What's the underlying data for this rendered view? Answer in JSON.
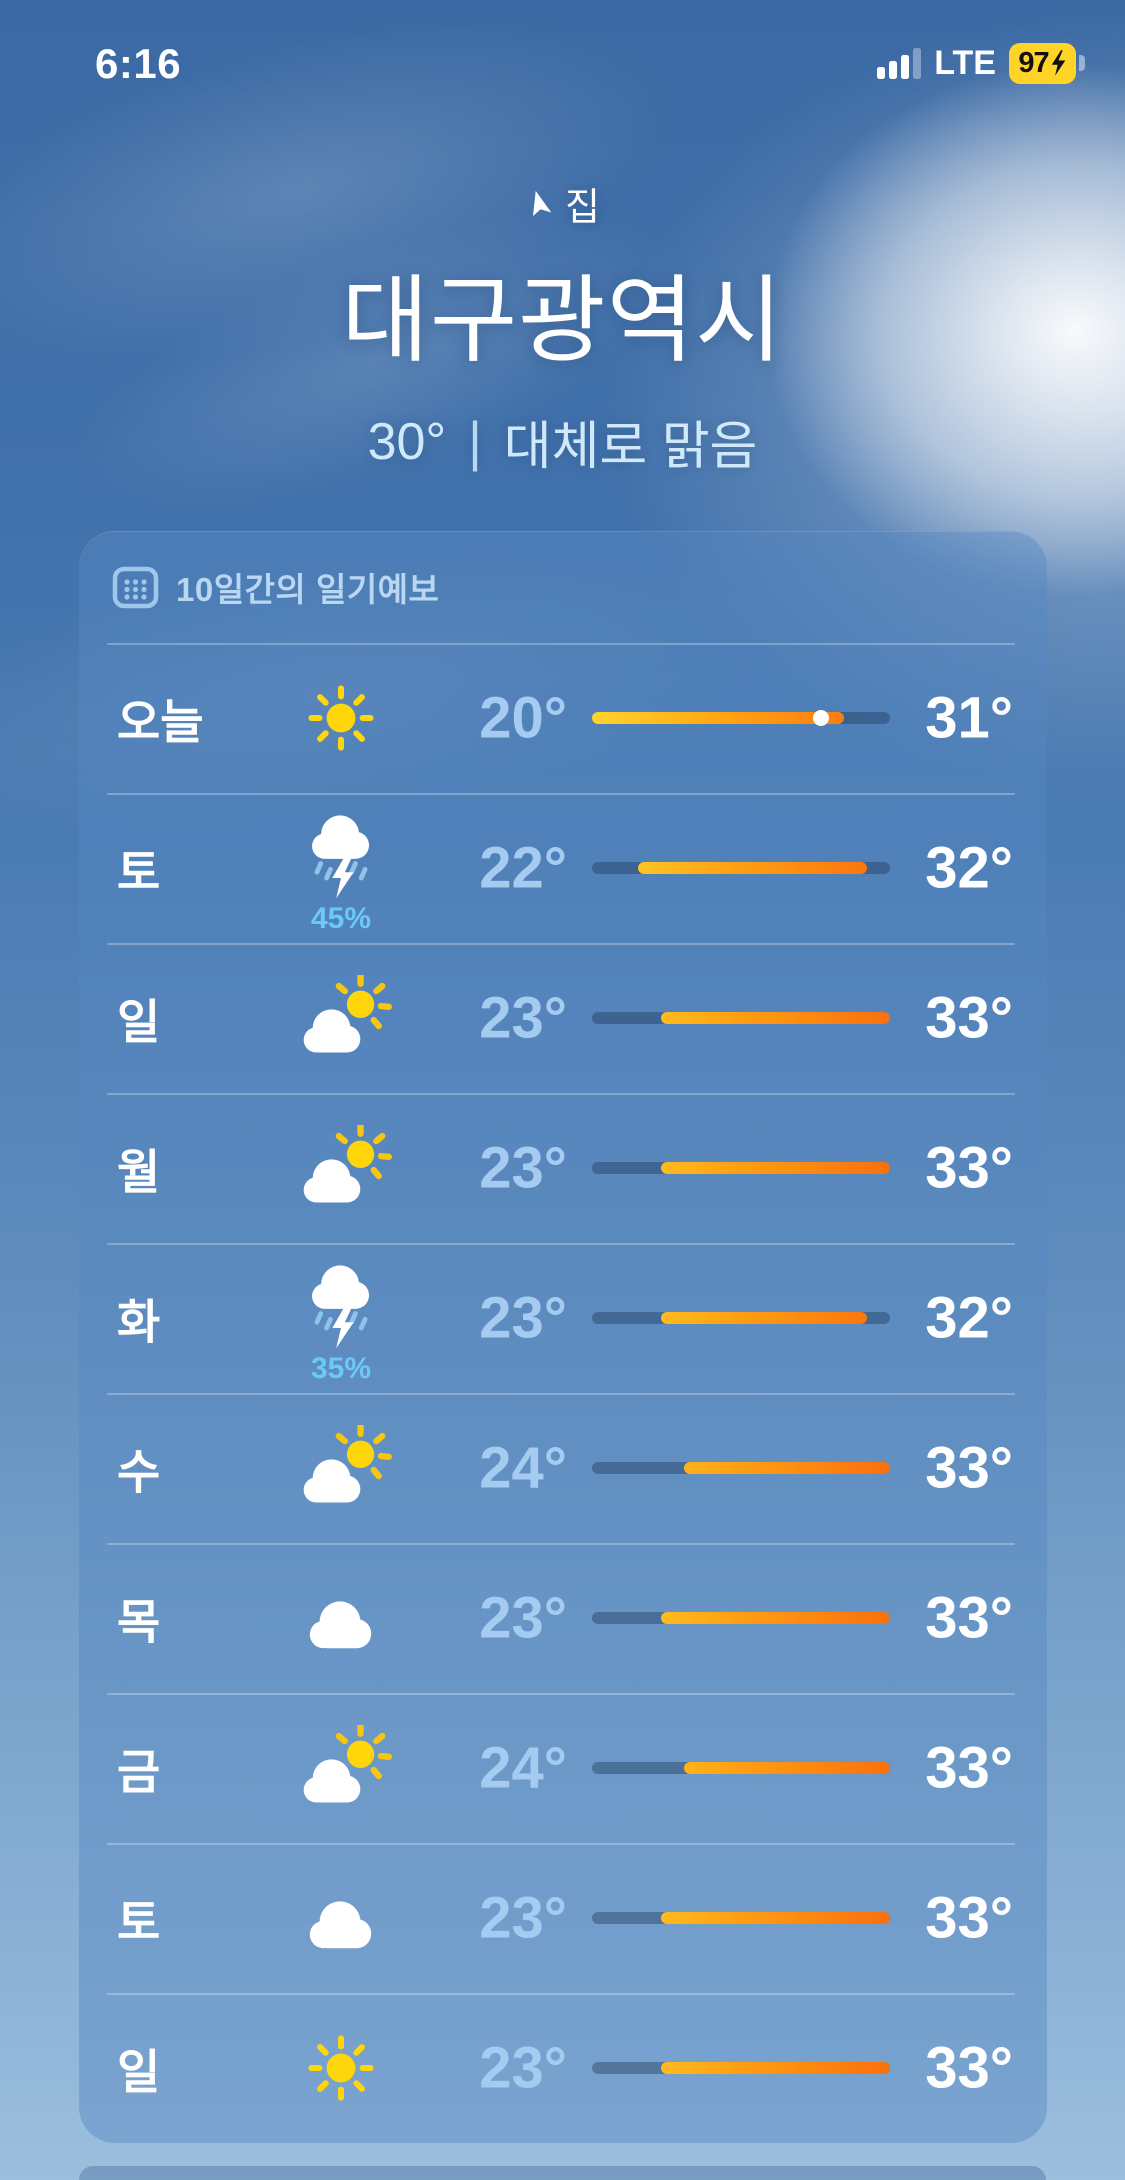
{
  "status_bar": {
    "time": "6:16",
    "network": "LTE",
    "battery_percent": "97",
    "icons": {
      "signal": "cellular-signal-icon",
      "battery": "battery-charging-icon"
    }
  },
  "header": {
    "location_icon": "location-arrow-icon",
    "location_label": "집",
    "city": "대구광역시",
    "current_temp": "30°",
    "separator": "|",
    "condition": "대체로 맑음"
  },
  "forecast_card": {
    "title_icon": "calendar-icon",
    "title": "10일간의 일기예보",
    "temp_scale": {
      "min": 20,
      "max": 33
    },
    "rows": [
      {
        "day": "오늘",
        "icon": "sun-icon",
        "low": "20°",
        "high": "31°",
        "current": 30
      },
      {
        "day": "토",
        "icon": "cloud-bolt-rain-icon",
        "precip": "45%",
        "low": "22°",
        "high": "32°"
      },
      {
        "day": "일",
        "icon": "cloud-sun-icon",
        "low": "23°",
        "high": "33°"
      },
      {
        "day": "월",
        "icon": "cloud-sun-icon",
        "low": "23°",
        "high": "33°"
      },
      {
        "day": "화",
        "icon": "cloud-bolt-rain-icon",
        "precip": "35%",
        "low": "23°",
        "high": "32°"
      },
      {
        "day": "수",
        "icon": "cloud-sun-icon",
        "low": "24°",
        "high": "33°"
      },
      {
        "day": "목",
        "icon": "cloud-icon",
        "low": "23°",
        "high": "33°"
      },
      {
        "day": "금",
        "icon": "cloud-sun-icon",
        "low": "24°",
        "high": "33°"
      },
      {
        "day": "토",
        "icon": "cloud-icon",
        "low": "23°",
        "high": "33°"
      },
      {
        "day": "일",
        "icon": "sun-icon",
        "low": "23°",
        "high": "33°"
      }
    ]
  },
  "colors": {
    "bar_gradient_start": "#ffd42c",
    "bar_gradient_mid": "#ffa313",
    "bar_gradient_end": "#f9700e",
    "bar_track": "rgba(28,52,82,0.40)",
    "low_temp": "#a5cbf0",
    "high_temp": "#ffffff",
    "precip_text": "#6cc9f7",
    "battery_yellow": "#ffd426",
    "sun_yellow": "#ffd60a",
    "sun_ray": "#f7c60d",
    "rain_streak": "#8fc3e9",
    "card_title_text": "#cde6fa"
  }
}
